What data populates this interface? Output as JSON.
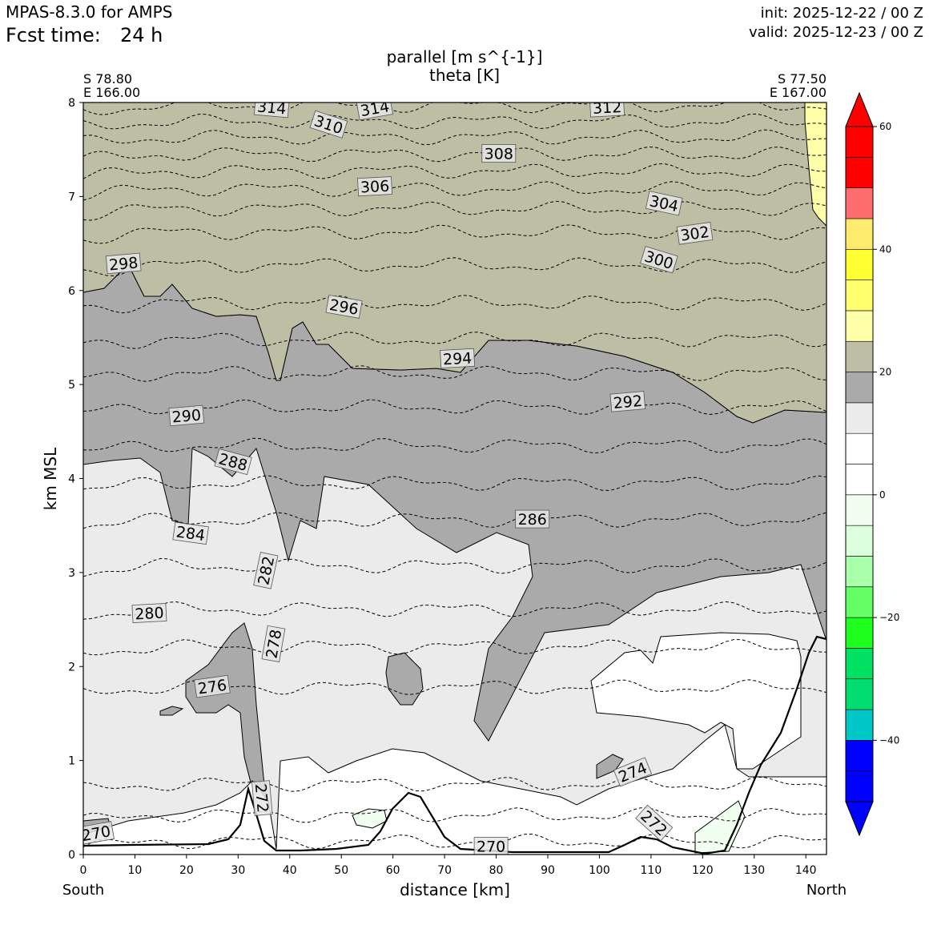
{
  "header": {
    "model": "MPAS-8.3.0 for AMPS",
    "fcst_label": "Fcst time:",
    "fcst_value": "24 h",
    "init": "init: 2025-12-22 / 00 Z",
    "valid": "valid: 2025-12-23 / 00 Z"
  },
  "chart_data": {
    "type": "cross-section",
    "title": "parallel [m s^{-1}]",
    "subtitle": "theta [K]",
    "xlabel": "distance [km]",
    "ylabel": "km MSL",
    "xlim": [
      0,
      144
    ],
    "ylim": [
      0,
      8
    ],
    "x_ticks": [
      "0",
      "10",
      "20",
      "30",
      "40",
      "50",
      "60",
      "70",
      "80",
      "90",
      "100",
      "110",
      "120",
      "130",
      "140"
    ],
    "y_ticks": [
      "0",
      "1",
      "2",
      "3",
      "4",
      "5",
      "6",
      "7",
      "8"
    ],
    "left_end": {
      "lat": "S 78.80",
      "lon": "E 166.00",
      "dir": "South"
    },
    "right_end": {
      "lat": "S 77.50",
      "lon": "E 167.00",
      "dir": "North"
    },
    "colorbar": {
      "ticks": [
        "60",
        "40",
        "20",
        "0",
        "−20",
        "−40"
      ],
      "tick_values": [
        60,
        40,
        20,
        0,
        -20,
        -40
      ],
      "levels": [
        -50,
        -45,
        -40,
        -35,
        -30,
        -25,
        -20,
        -15,
        -10,
        -5,
        0,
        5,
        10,
        15,
        20,
        25,
        30,
        35,
        40,
        45,
        50,
        55,
        60
      ],
      "colors": [
        "#0000ff",
        "#0000ff",
        "#00c8c8",
        "#00dc6e",
        "#00e164",
        "#1eff1e",
        "#64ff64",
        "#aaffaa",
        "#dcffdc",
        "#f0fff0",
        "#ffffff",
        "#ffffff",
        "#ebebeb",
        "#aaaaaa",
        "#bebea5",
        "#ffffaa",
        "#ffff6e",
        "#ffff32",
        "#ffeb6e",
        "#ff6e6e",
        "#ff0000",
        "#ff0000"
      ],
      "under_color": "#0000ff",
      "over_color": "#ff0000"
    },
    "filled_regions": [
      {
        "name": "wind-10-15",
        "color": "#ebebeb"
      },
      {
        "name": "wind-15-20",
        "color": "#aaaaaa"
      },
      {
        "name": "wind-20-25",
        "color": "#bebea5"
      },
      {
        "name": "wind-25-30",
        "color": "#ffffaa"
      },
      {
        "name": "wind-5-10",
        "color": "#ffffff"
      },
      {
        "name": "wind-neg",
        "color": "#f0fff0"
      }
    ],
    "theta_contours": [
      {
        "label": "270",
        "base_y": 0.14
      },
      {
        "label": "272",
        "base_y": 0.42
      },
      {
        "label": "274",
        "base_y": 0.75
      },
      {
        "label": "276",
        "base_y": 1.78
      },
      {
        "label": "278",
        "base_y": 2.21
      },
      {
        "label": "280",
        "base_y": 2.61
      },
      {
        "label": "282",
        "base_y": 3.07
      },
      {
        "label": "284",
        "base_y": 3.56
      },
      {
        "label": "286",
        "base_y": 3.95
      },
      {
        "label": "288",
        "base_y": 4.35
      },
      {
        "label": "290",
        "base_y": 4.76
      },
      {
        "label": "292",
        "base_y": 5.12
      },
      {
        "label": "294",
        "base_y": 5.48
      },
      {
        "label": "296",
        "base_y": 5.87
      },
      {
        "label": "298",
        "base_y": 6.27
      },
      {
        "label": "300",
        "base_y": 6.62
      },
      {
        "label": "302",
        "base_y": 6.87
      },
      {
        "label": "304",
        "base_y": 7.08
      },
      {
        "label": "306",
        "base_y": 7.27
      },
      {
        "label": "308",
        "base_y": 7.45
      },
      {
        "label": "310",
        "base_y": 7.63
      },
      {
        "label": "312",
        "base_y": 7.8
      },
      {
        "label": "314",
        "base_y": 7.97
      }
    ],
    "contour_labels": [
      {
        "text": "314",
        "x": 36.5,
        "y": 7.94,
        "rot": 5
      },
      {
        "text": "314",
        "x": 56.5,
        "y": 7.93,
        "rot": -10
      },
      {
        "text": "312",
        "x": 101.5,
        "y": 7.94,
        "rot": -3
      },
      {
        "text": "310",
        "x": 47.5,
        "y": 7.76,
        "rot": 18
      },
      {
        "text": "308",
        "x": 80.5,
        "y": 7.45,
        "rot": 0
      },
      {
        "text": "306",
        "x": 56.5,
        "y": 7.1,
        "rot": -3
      },
      {
        "text": "304",
        "x": 112.5,
        "y": 6.92,
        "rot": 12
      },
      {
        "text": "302",
        "x": 118.5,
        "y": 6.6,
        "rot": -8
      },
      {
        "text": "300",
        "x": 111.5,
        "y": 6.32,
        "rot": 17
      },
      {
        "text": "298",
        "x": 7.8,
        "y": 6.28,
        "rot": -5
      },
      {
        "text": "296",
        "x": 50.5,
        "y": 5.82,
        "rot": 10
      },
      {
        "text": "294",
        "x": 72.5,
        "y": 5.27,
        "rot": -3
      },
      {
        "text": "292",
        "x": 105.5,
        "y": 4.81,
        "rot": -5
      },
      {
        "text": "290",
        "x": 20.0,
        "y": 4.66,
        "rot": -5
      },
      {
        "text": "288",
        "x": 29.0,
        "y": 4.17,
        "rot": 15
      },
      {
        "text": "286",
        "x": 87.0,
        "y": 3.56,
        "rot": 0
      },
      {
        "text": "284",
        "x": 20.8,
        "y": 3.41,
        "rot": 8
      },
      {
        "text": "282",
        "x": 35.5,
        "y": 3.02,
        "rot": -78
      },
      {
        "text": "280",
        "x": 12.8,
        "y": 2.56,
        "rot": -3
      },
      {
        "text": "278",
        "x": 37.0,
        "y": 2.24,
        "rot": -80
      },
      {
        "text": "276",
        "x": 25.0,
        "y": 1.78,
        "rot": -8
      },
      {
        "text": "274",
        "x": 106.5,
        "y": 0.87,
        "rot": -22
      },
      {
        "text": "272",
        "x": 34.5,
        "y": 0.6,
        "rot": 85
      },
      {
        "text": "272",
        "x": 110.5,
        "y": 0.33,
        "rot": 42
      },
      {
        "text": "270",
        "x": 2.5,
        "y": 0.22,
        "rot": -10
      },
      {
        "text": "270",
        "x": 79.0,
        "y": 0.08,
        "rot": 0
      }
    ]
  }
}
